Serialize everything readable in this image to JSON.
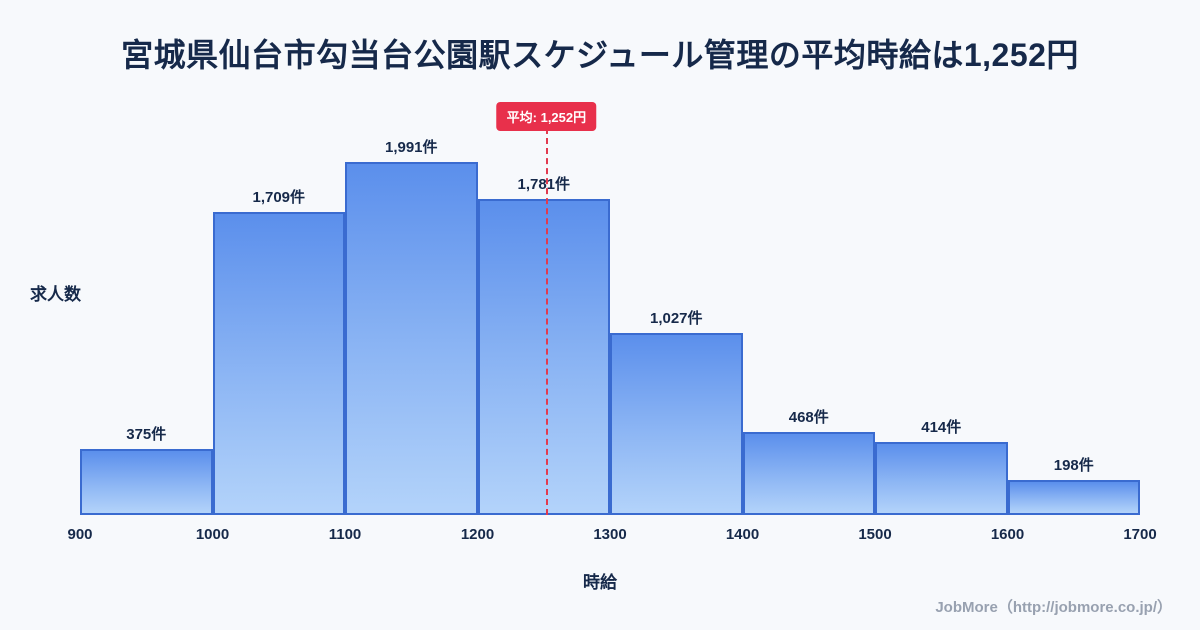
{
  "page": {
    "title": "宮城県仙台市勾当台公園駅スケジュール管理の平均時給は1,252円",
    "footer": "JobMore（http://jobmore.co.jp/）"
  },
  "chart_data": {
    "type": "bar",
    "subtype": "histogram",
    "title": "宮城県仙台市勾当台公園駅スケジュール管理の平均時給は1,252円",
    "xlabel": "時給",
    "ylabel": "求人数",
    "bin_edges": [
      900,
      1000,
      1100,
      1200,
      1300,
      1400,
      1500,
      1600,
      1700
    ],
    "values": [
      375,
      1709,
      1991,
      1781,
      1027,
      468,
      414,
      198
    ],
    "value_labels": [
      "375件",
      "1,709件",
      "1,991件",
      "1,781件",
      "1,027件",
      "468件",
      "414件",
      "198件"
    ],
    "mean": {
      "value": 1252,
      "label": "平均: 1,252円"
    },
    "ylim": [
      0,
      2200
    ],
    "grid": false,
    "legend": "none",
    "colors": {
      "bar_gradient_top": "#5b8fec",
      "bar_gradient_bottom": "#b3d3fa",
      "bar_border": "#3a6bd0",
      "mean_line": "#e23a4e",
      "mean_badge_bg": "#e8304b",
      "mean_badge_text": "#ffffff",
      "text": "#16294a",
      "background": "#f7f9fc",
      "footer_text": "#98a1b0"
    }
  }
}
